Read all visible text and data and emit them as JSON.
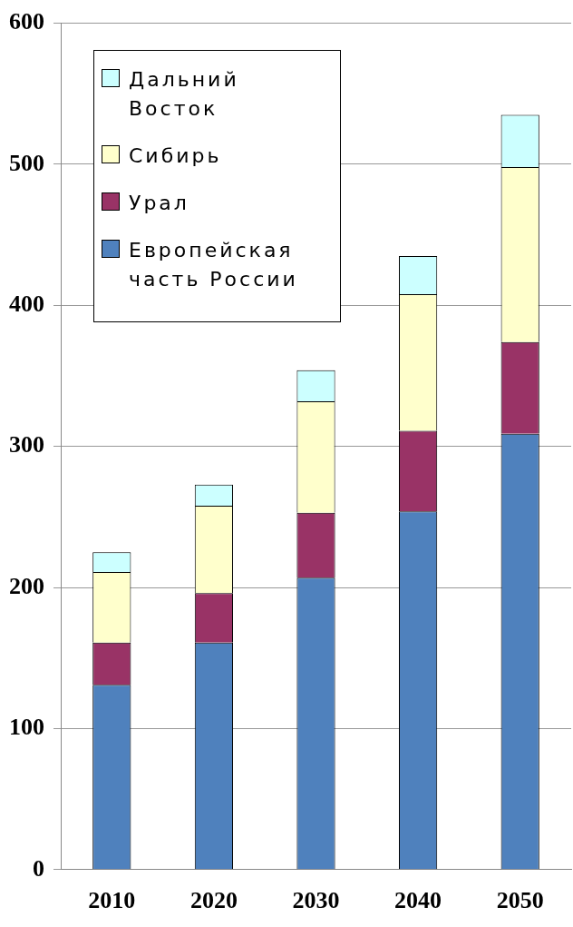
{
  "chart_data": {
    "type": "bar",
    "stacked": true,
    "categories": [
      "2010",
      "2020",
      "2030",
      "2040",
      "2050"
    ],
    "series": [
      {
        "name": "Европейская часть России",
        "color": "#4f81bd",
        "values": [
          131,
          161,
          207,
          254,
          309
        ]
      },
      {
        "name": "Урал",
        "color": "#993366",
        "values": [
          30,
          35,
          46,
          57,
          65
        ]
      },
      {
        "name": "Сибирь",
        "color": "#ffffcc",
        "values": [
          50,
          62,
          79,
          97,
          124
        ]
      },
      {
        "name": "Дальний Восток",
        "color": "#ccffff",
        "values": [
          14,
          15,
          22,
          27,
          37
        ]
      }
    ],
    "ylim": [
      0,
      600
    ],
    "yticks": [
      0,
      100,
      200,
      300,
      400,
      500,
      600
    ],
    "grid": "y",
    "legend": "top left"
  }
}
